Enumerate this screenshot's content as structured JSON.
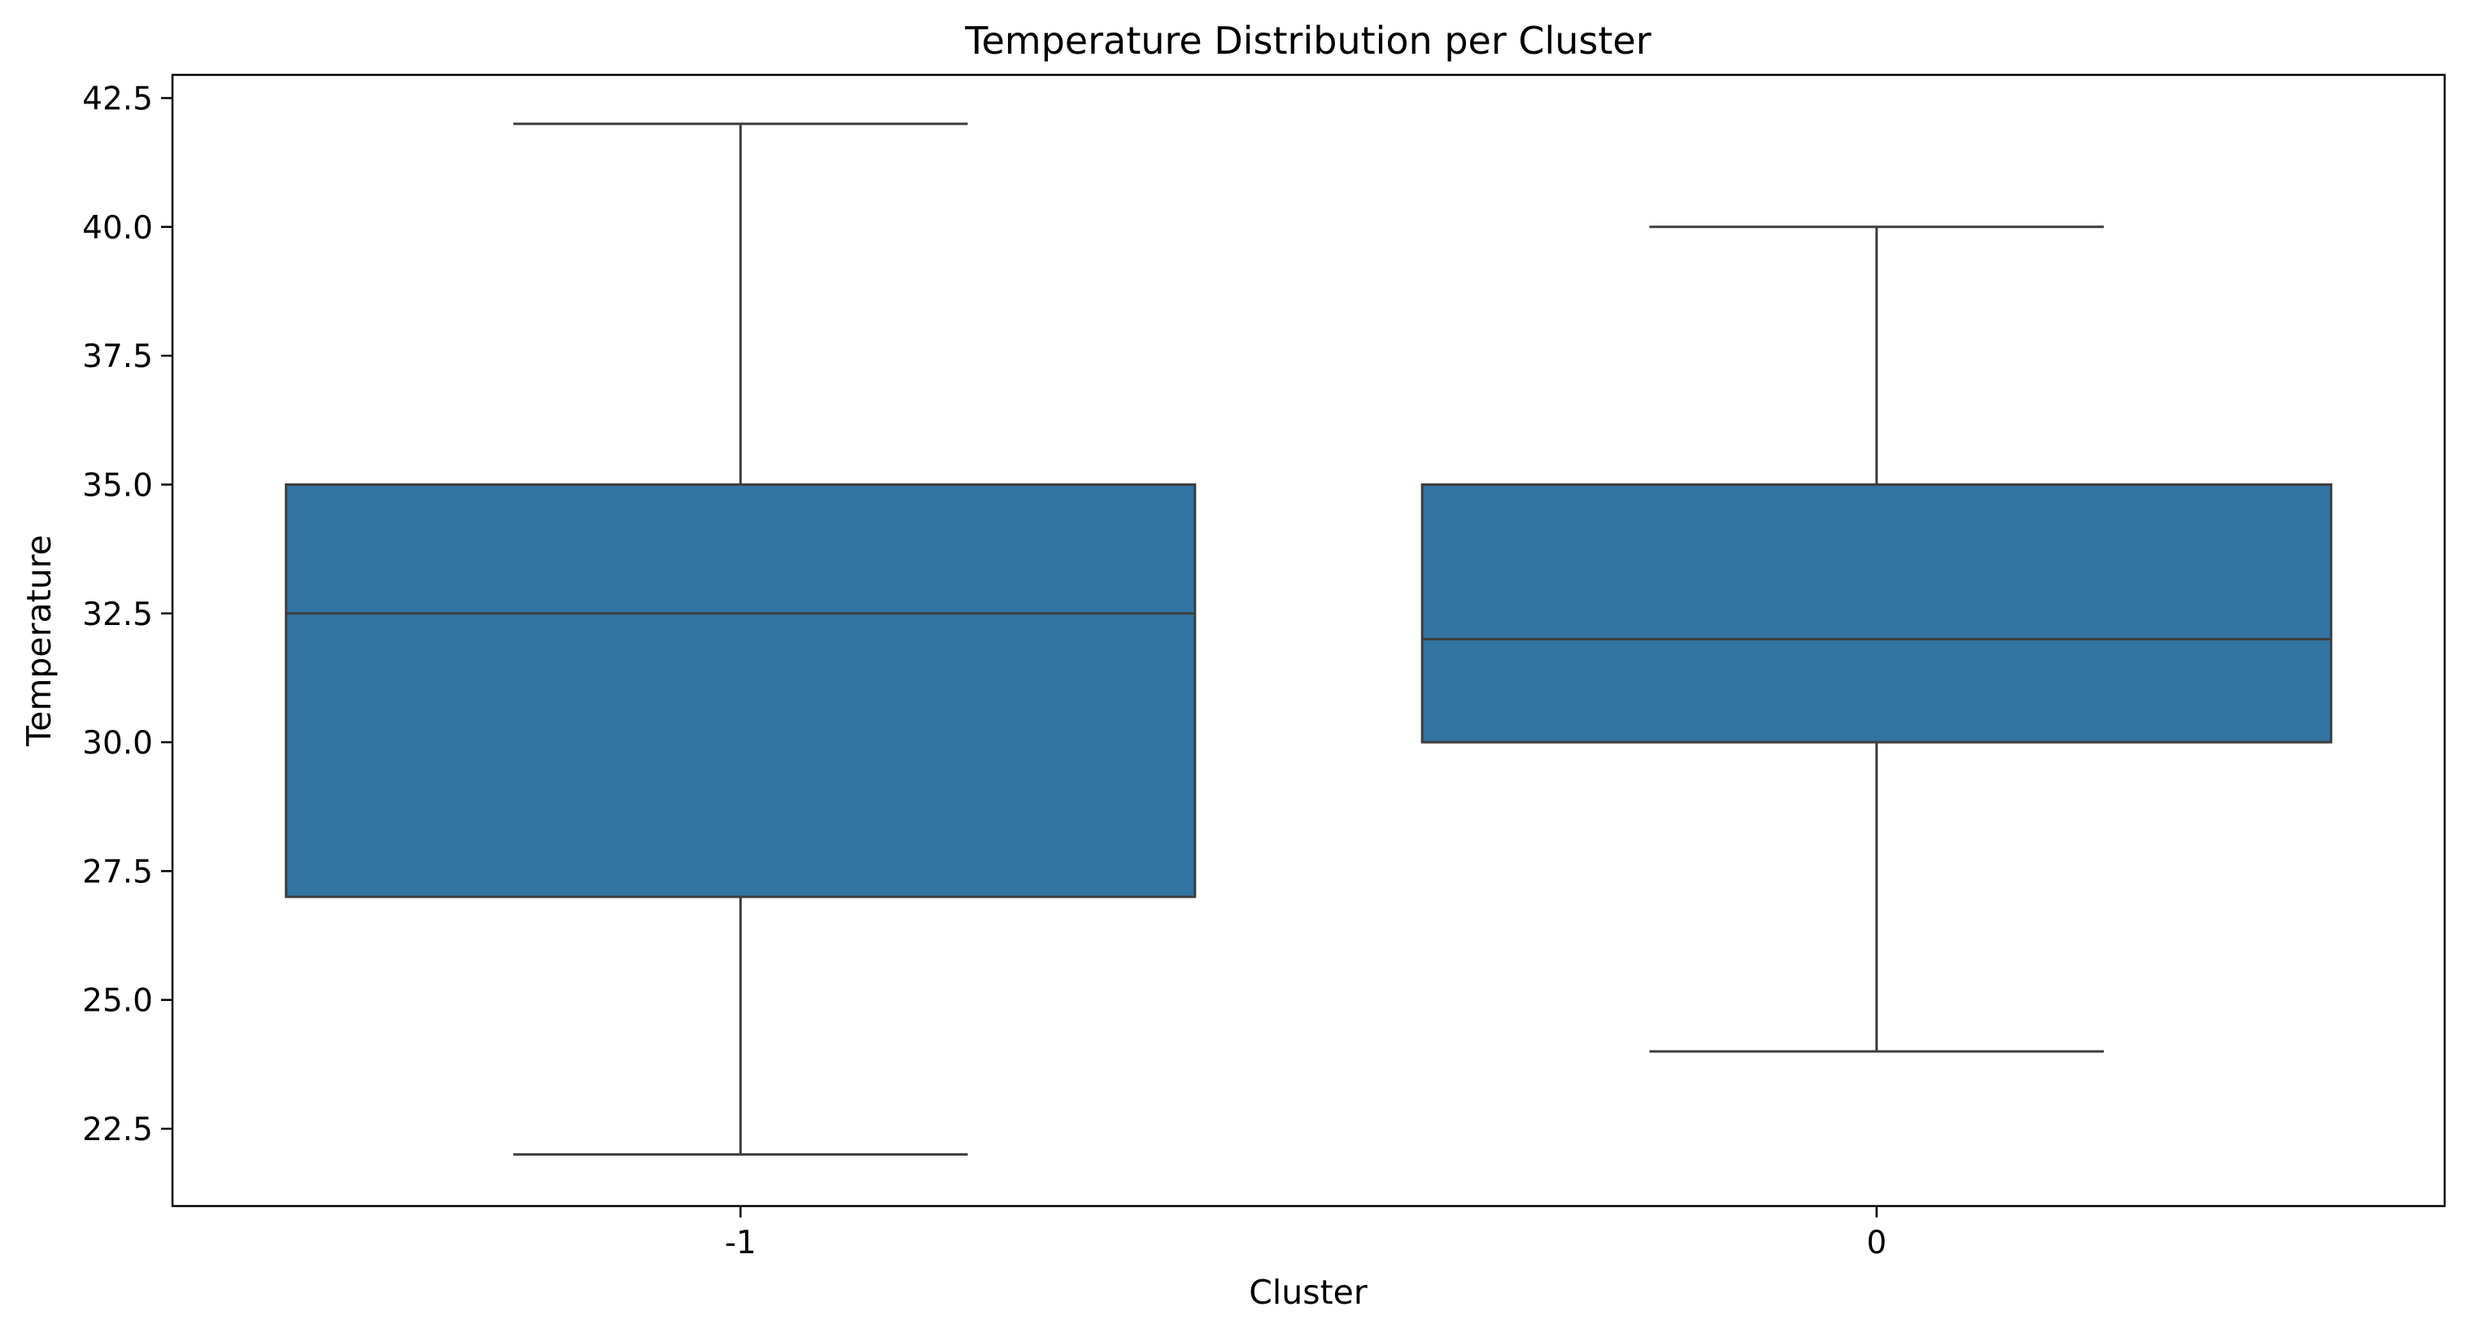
{
  "chart_data": {
    "type": "box",
    "title": "Temperature Distribution per Cluster",
    "xlabel": "Cluster",
    "ylabel": "Temperature",
    "categories": [
      "-1",
      "0"
    ],
    "boxes": [
      {
        "category": "-1",
        "whisker_low": 22.0,
        "q1": 27.0,
        "median": 32.5,
        "q3": 35.0,
        "whisker_high": 42.0
      },
      {
        "category": "0",
        "whisker_low": 24.0,
        "q1": 30.0,
        "median": 32.0,
        "q3": 35.0,
        "whisker_high": 40.0
      }
    ],
    "ylim": [
      21.0,
      42.95
    ],
    "yticks": [
      "22.5",
      "25.0",
      "27.5",
      "30.0",
      "32.5",
      "35.0",
      "37.5",
      "40.0",
      "42.5"
    ],
    "grid": false,
    "legend": "none",
    "box_color": "#3274a1",
    "line_color": "#3d3d3d"
  }
}
